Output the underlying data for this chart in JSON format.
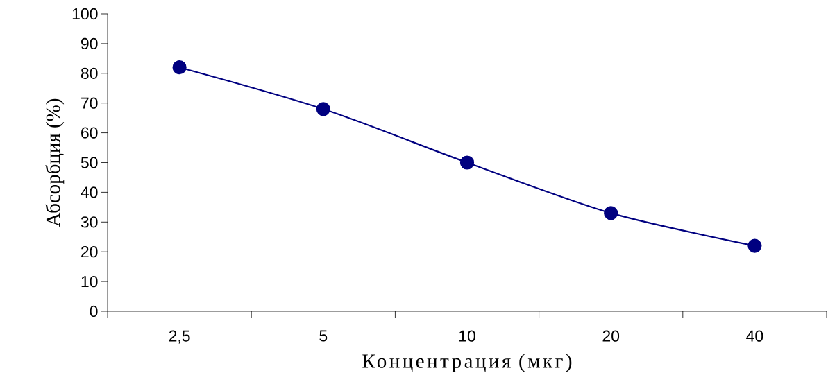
{
  "chart_data": {
    "type": "line",
    "xlabel": "Концентрация (мкг)",
    "ylabel": "Абсорбция (%)",
    "categories": [
      "2,5",
      "5",
      "10",
      "20",
      "40"
    ],
    "values": [
      82,
      68,
      50,
      33,
      22
    ],
    "color": "#000080",
    "marker": "circle",
    "line_style": "solid",
    "ylim": [
      0,
      100
    ],
    "yticks": [
      0,
      10,
      20,
      30,
      40,
      50,
      60,
      70,
      80,
      90,
      100
    ]
  }
}
